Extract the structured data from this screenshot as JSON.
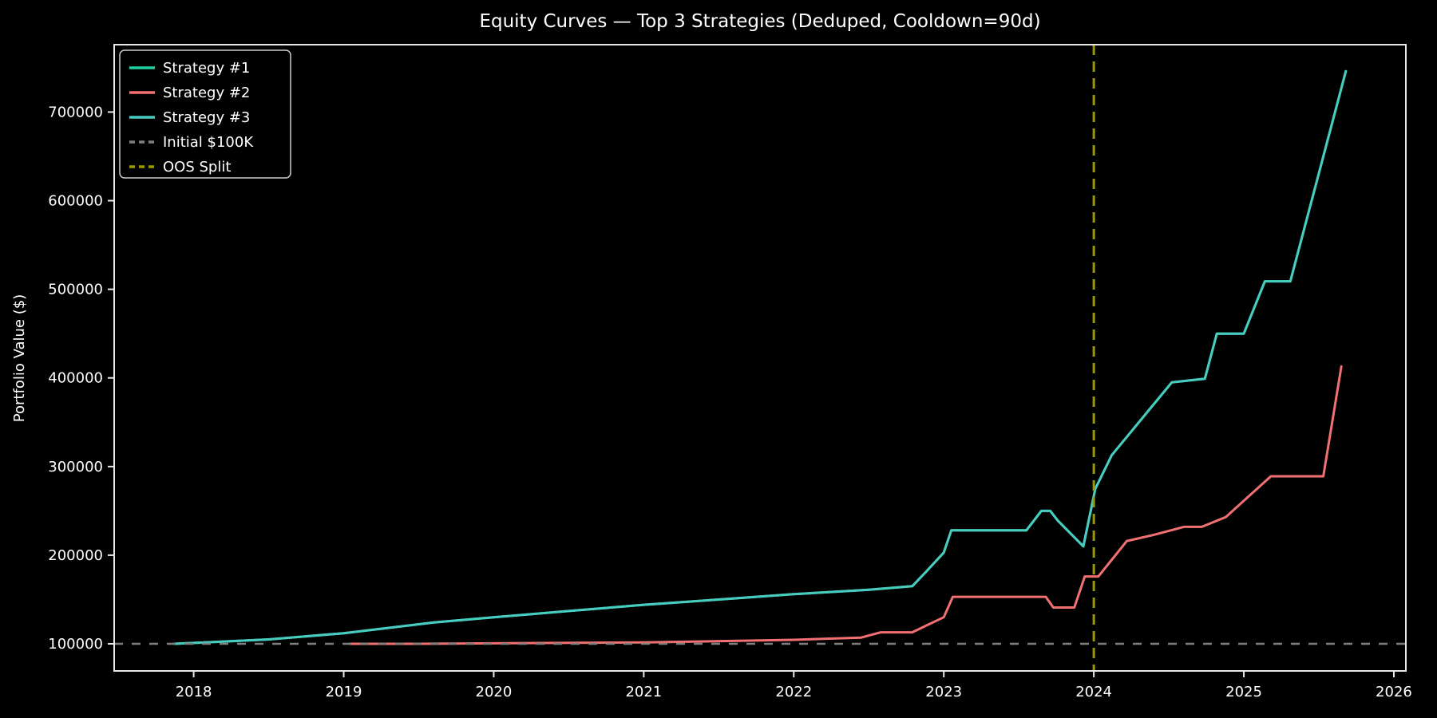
{
  "title": "Equity Curves — Top 3 Strategies (Deduped, Cooldown=90d)",
  "colors": {
    "background": "#000000",
    "spine": "#e8e8e8",
    "tick_label": "#ffffff",
    "strategy1": "#1fd0a0",
    "strategy2": "#f17173",
    "strategy3": "#48ccc0",
    "initial_line": "#808080",
    "oos_line": "#9a9a00",
    "legend_border": "#cccccc",
    "legend_fill": "#000000"
  },
  "chart_data": {
    "type": "line",
    "title": "Equity Curves — Top 3 Strategies (Deduped, Cooldown=90d)",
    "xlabel": "",
    "ylabel": "Portfolio Value ($)",
    "xlim": [
      2017.47,
      2026.08
    ],
    "ylim": [
      69400,
      776000
    ],
    "x_ticks": [
      2018,
      2019,
      2020,
      2021,
      2022,
      2023,
      2024,
      2025,
      2026
    ],
    "x_tick_labels": [
      "2018",
      "2019",
      "2020",
      "2021",
      "2022",
      "2023",
      "2024",
      "2025",
      "2026"
    ],
    "y_ticks": [
      100000,
      200000,
      300000,
      400000,
      500000,
      600000,
      700000
    ],
    "y_tick_labels": [
      "100000",
      "200000",
      "300000",
      "400000",
      "500000",
      "600000",
      "700000"
    ],
    "grid": false,
    "legend_position": "upper-left",
    "series": [
      {
        "name": "Strategy #1",
        "color": "#1fd0a0",
        "style": "solid",
        "note": "visually identical to Strategy #3 and hidden beneath it",
        "x": [
          2017.87,
          2018.0,
          2018.5,
          2019.0,
          2019.6,
          2020.0,
          2020.5,
          2021.0,
          2021.5,
          2022.0,
          2022.5,
          2022.79,
          2022.88,
          2023.0,
          2023.05,
          2023.55,
          2023.65,
          2023.71,
          2023.76,
          2023.93,
          2024.01,
          2024.12,
          2024.52,
          2024.74,
          2024.82,
          2025.0,
          2025.14,
          2025.31,
          2025.68
        ],
        "y": [
          100000,
          101000,
          105000,
          112000,
          124000,
          130000,
          137000,
          144000,
          150000,
          156000,
          161000,
          165000,
          181000,
          203000,
          228000,
          228000,
          250000,
          250000,
          239000,
          210000,
          275000,
          313000,
          395000,
          399000,
          450000,
          450000,
          509000,
          509000,
          746000
        ]
      },
      {
        "name": "Strategy #2",
        "color": "#f17173",
        "style": "solid",
        "x": [
          2019.04,
          2019.5,
          2020.0,
          2021.0,
          2022.0,
          2022.45,
          2022.58,
          2022.79,
          2022.9,
          2023.0,
          2023.06,
          2023.68,
          2023.73,
          2023.87,
          2023.94,
          2024.03,
          2024.22,
          2024.4,
          2024.6,
          2024.72,
          2024.88,
          2025.18,
          2025.53,
          2025.65
        ],
        "y": [
          100000,
          100000,
          100500,
          101500,
          104500,
          107000,
          113000,
          113000,
          122000,
          130000,
          153000,
          153000,
          141000,
          141000,
          176000,
          176000,
          216000,
          223000,
          232000,
          232000,
          243000,
          289000,
          289000,
          413000
        ]
      },
      {
        "name": "Strategy #3",
        "color": "#48ccc0",
        "style": "solid",
        "x": [
          2017.87,
          2018.0,
          2018.5,
          2019.0,
          2019.6,
          2020.0,
          2020.5,
          2021.0,
          2021.5,
          2022.0,
          2022.5,
          2022.79,
          2022.88,
          2023.0,
          2023.05,
          2023.55,
          2023.65,
          2023.71,
          2023.76,
          2023.93,
          2024.01,
          2024.12,
          2024.52,
          2024.74,
          2024.82,
          2025.0,
          2025.14,
          2025.31,
          2025.68
        ],
        "y": [
          100000,
          101000,
          105000,
          112000,
          124000,
          130000,
          137000,
          144000,
          150000,
          156000,
          161000,
          165000,
          181000,
          203000,
          228000,
          228000,
          250000,
          250000,
          239000,
          210000,
          275000,
          313000,
          395000,
          399000,
          450000,
          450000,
          509000,
          509000,
          746000
        ]
      }
    ],
    "reference_lines": [
      {
        "name": "Initial $100K",
        "orientation": "horizontal",
        "value": 100000,
        "color": "#808080",
        "style": "dashed"
      },
      {
        "name": "OOS Split",
        "orientation": "vertical",
        "value": 2024.0,
        "color": "#9a9a00",
        "style": "dashed"
      }
    ],
    "legend_entries": [
      {
        "label": "Strategy #1",
        "color": "#1fd0a0",
        "dashed": false
      },
      {
        "label": "Strategy #2",
        "color": "#f17173",
        "dashed": false
      },
      {
        "label": "Strategy #3",
        "color": "#48ccc0",
        "dashed": false
      },
      {
        "label": "Initial $100K",
        "color": "#808080",
        "dashed": true
      },
      {
        "label": "OOS Split",
        "color": "#9a9a00",
        "dashed": true
      }
    ]
  }
}
